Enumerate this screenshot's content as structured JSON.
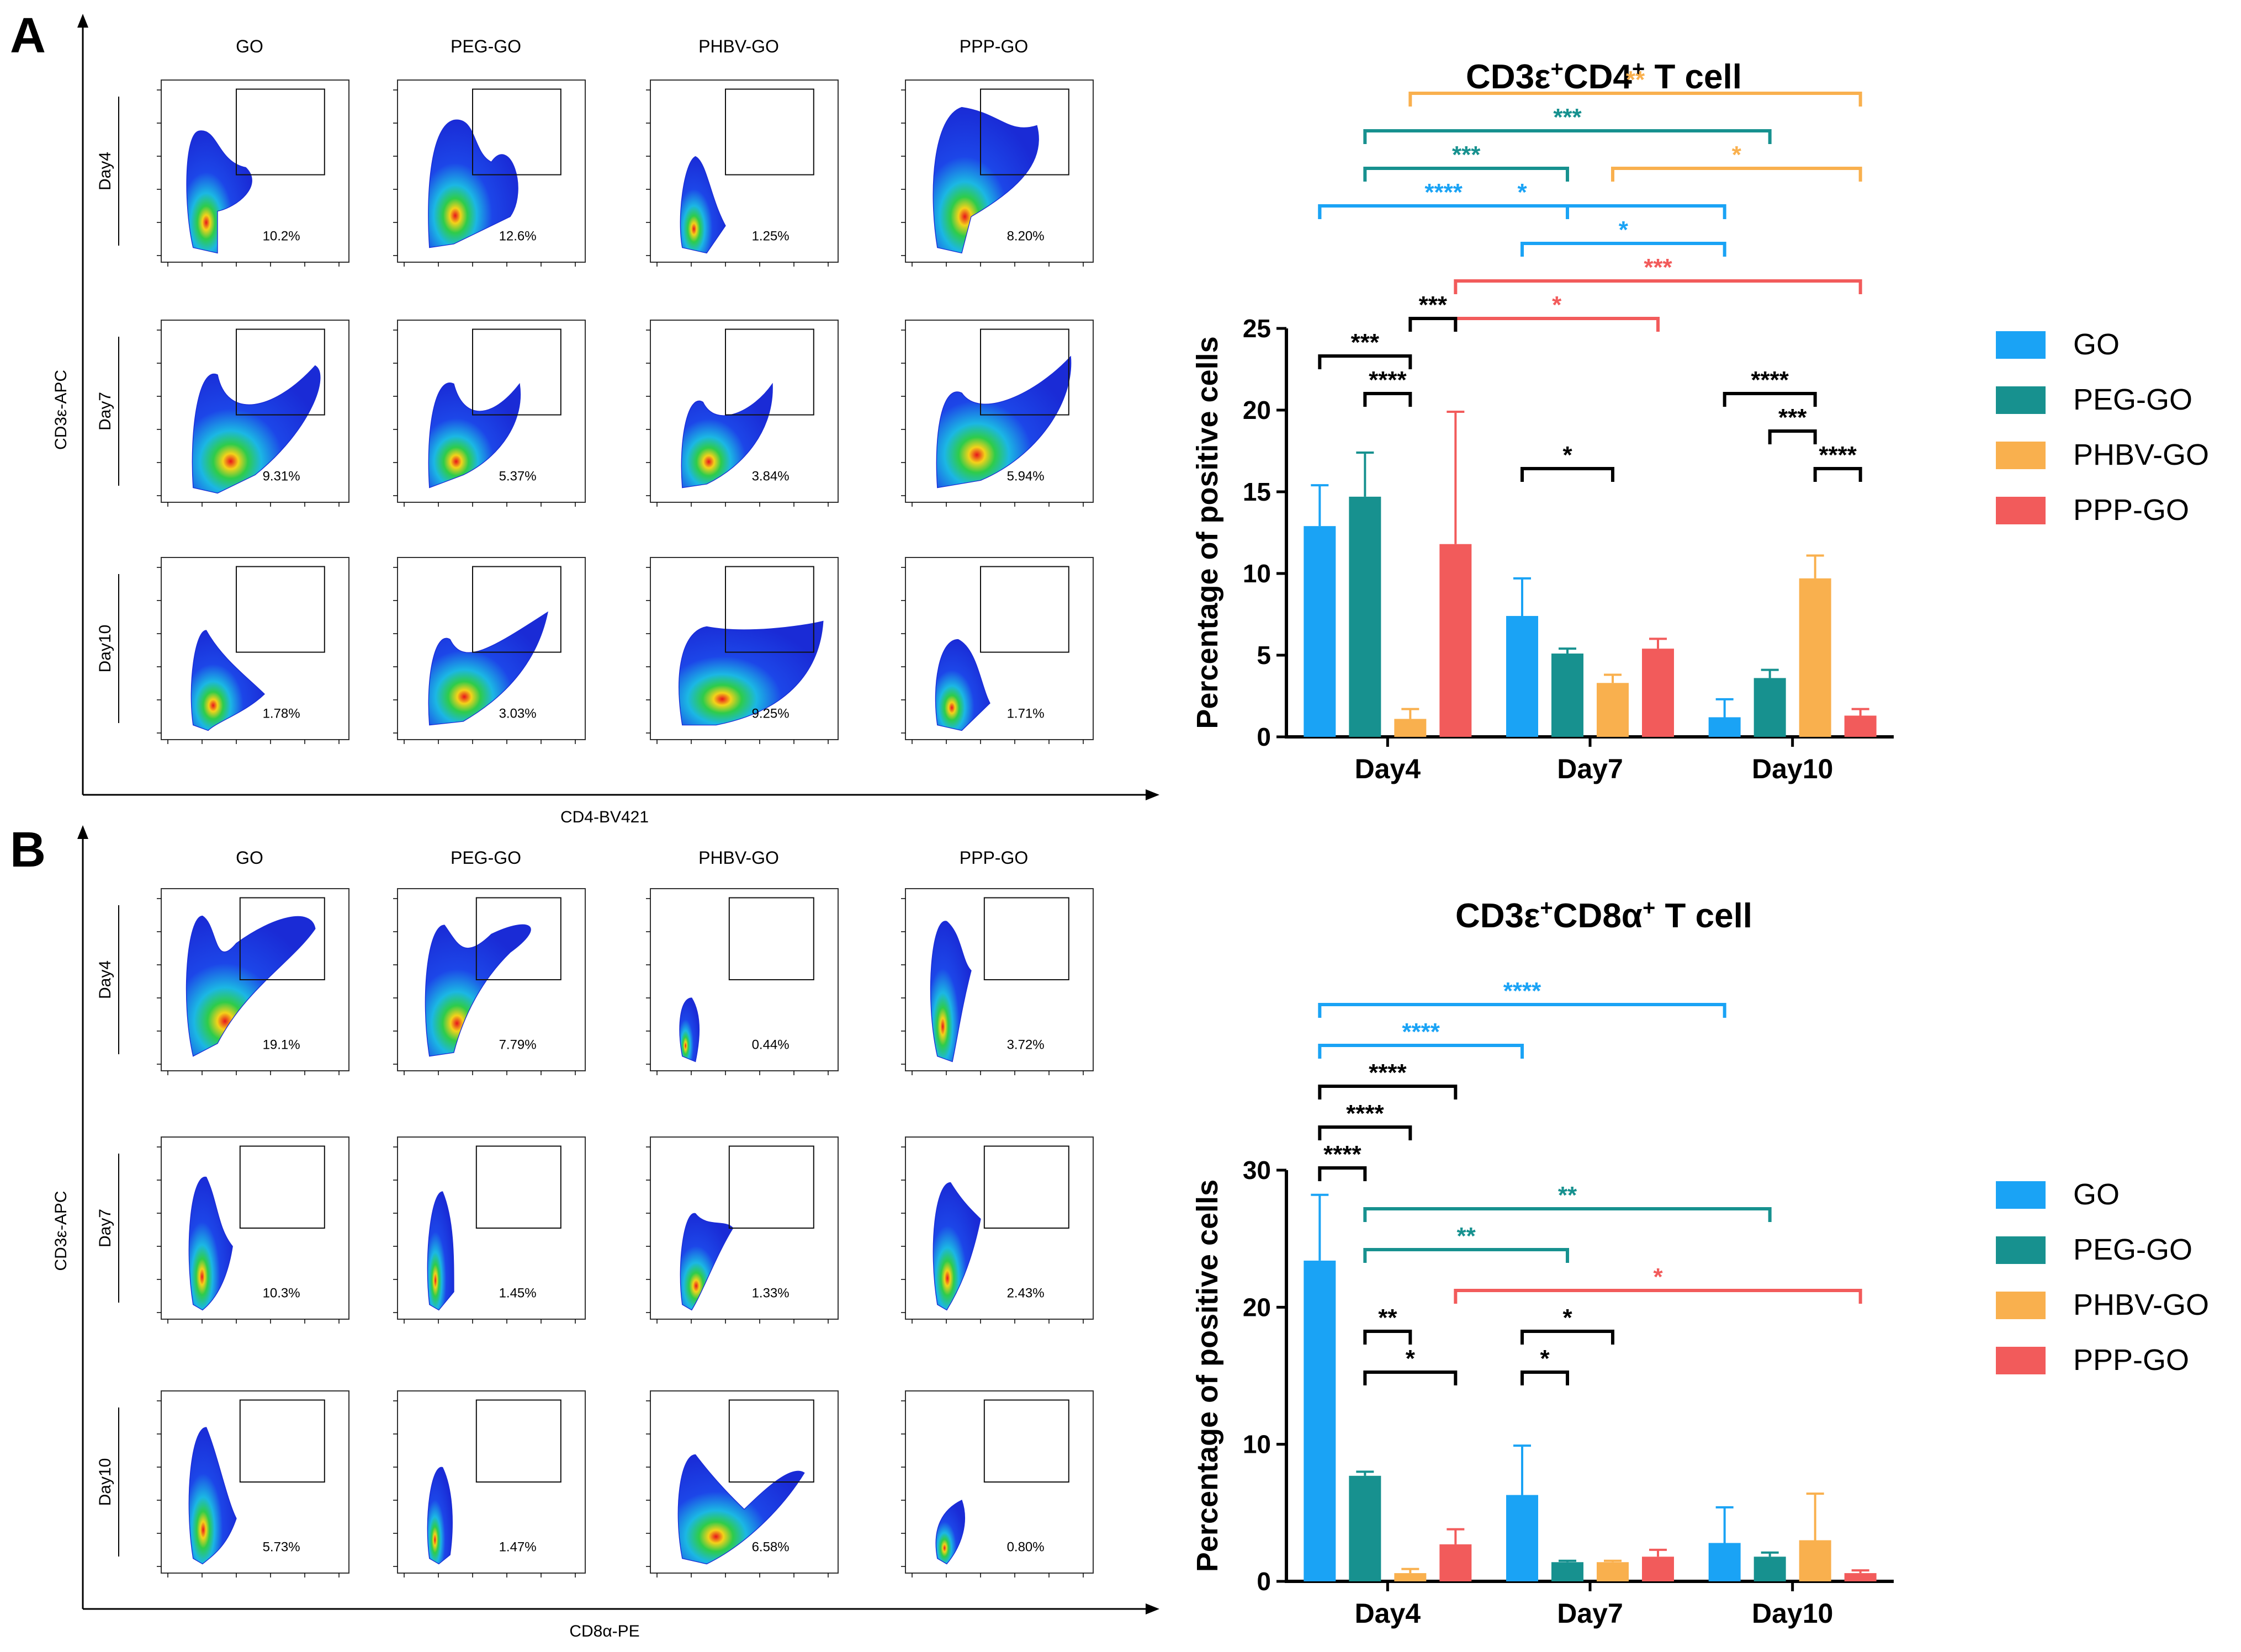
{
  "panels": [
    {
      "letter": "A",
      "columns": [
        "GO",
        "PEG-GO",
        "PHBV-GO",
        "PPP-GO"
      ],
      "rows": [
        "Day4",
        "Day7",
        "Day10"
      ],
      "y_axis": "CD3ε-APC",
      "x_axis": "CD4-BV421",
      "percentages": [
        [
          "10.2%",
          "12.6%",
          "1.25%",
          "8.20%"
        ],
        [
          "9.31%",
          "5.37%",
          "3.84%",
          "5.94%"
        ],
        [
          "1.78%",
          "3.03%",
          "9.25%",
          "1.71%"
        ]
      ]
    },
    {
      "letter": "B",
      "columns": [
        "GO",
        "PEG-GO",
        "PHBV-GO",
        "PPP-GO"
      ],
      "rows": [
        "Day4",
        "Day7",
        "Day10"
      ],
      "y_axis": "CD3ε-APC",
      "x_axis": "CD8α-PE",
      "percentages": [
        [
          "19.1%",
          "7.79%",
          "0.44%",
          "3.72%"
        ],
        [
          "10.3%",
          "1.45%",
          "1.33%",
          "2.43%"
        ],
        [
          "5.73%",
          "1.47%",
          "6.58%",
          "0.80%"
        ]
      ]
    }
  ],
  "colors": {
    "GO": "#1aa3f5",
    "PEG-GO": "#17918f",
    "PHBV-GO": "#f9b04e",
    "PPP-GO": "#f25b5b",
    "black": "#000000"
  },
  "chart_data": [
    {
      "type": "bar",
      "title_parts": [
        "CD3ε",
        "+",
        "CD4",
        "+",
        " T cell"
      ],
      "categories": [
        "Day4",
        "Day7",
        "Day10"
      ],
      "ylabel": "Percentage of positive cells",
      "ylim": [
        0,
        25
      ],
      "yticks": [
        0,
        5,
        10,
        15,
        20,
        25
      ],
      "series": [
        {
          "name": "GO",
          "values": [
            12.9,
            7.4,
            1.2
          ],
          "errors": [
            2.5,
            2.3,
            1.1
          ]
        },
        {
          "name": "PEG-GO",
          "values": [
            14.7,
            5.1,
            3.6
          ],
          "errors": [
            2.7,
            0.3,
            0.5
          ]
        },
        {
          "name": "PHBV-GO",
          "values": [
            1.1,
            3.3,
            9.7
          ],
          "errors": [
            0.6,
            0.5,
            1.4
          ]
        },
        {
          "name": "PPP-GO",
          "values": [
            11.8,
            5.4,
            1.3
          ],
          "errors": [
            8.1,
            0.6,
            0.4
          ]
        }
      ],
      "brackets": [
        {
          "label": "**",
          "from": [
            0,
            2
          ],
          "to": [
            2,
            3
          ],
          "color": "PHBV-GO",
          "level": 12
        },
        {
          "label": "***",
          "from": [
            0,
            1
          ],
          "to": [
            2,
            1
          ],
          "color": "PEG-GO",
          "level": 11
        },
        {
          "label": "***",
          "from": [
            0,
            1
          ],
          "to": [
            1,
            1
          ],
          "color": "PEG-GO",
          "level": 10
        },
        {
          "label": "*",
          "from": [
            1,
            2
          ],
          "to": [
            2,
            3
          ],
          "color": "PHBV-GO",
          "level": 10
        },
        {
          "label": "****",
          "from": [
            0,
            0
          ],
          "to": [
            1,
            1
          ],
          "color": "GO",
          "level": 9
        },
        {
          "label": "*",
          "from": [
            0,
            0
          ],
          "to": [
            2,
            0
          ],
          "color": "GO",
          "level": 9
        },
        {
          "label": "*",
          "from": [
            1,
            0
          ],
          "to": [
            2,
            0
          ],
          "color": "GO",
          "level": 8
        },
        {
          "label": "***",
          "from": [
            0,
            3
          ],
          "to": [
            2,
            3
          ],
          "color": "PPP-GO",
          "level": 7
        },
        {
          "label": "*",
          "from": [
            0,
            3
          ],
          "to": [
            1,
            3
          ],
          "color": "PPP-GO",
          "level": 6
        },
        {
          "label": "***",
          "from": [
            0,
            2
          ],
          "to": [
            0,
            3
          ],
          "color": "black",
          "level": 6
        },
        {
          "label": "***",
          "from": [
            0,
            0
          ],
          "to": [
            0,
            2
          ],
          "color": "black",
          "level": 5
        },
        {
          "label": "****",
          "from": [
            0,
            1
          ],
          "to": [
            0,
            2
          ],
          "color": "black",
          "level": 4
        },
        {
          "label": "****",
          "from": [
            2,
            0
          ],
          "to": [
            2,
            2
          ],
          "color": "black",
          "level": 4
        },
        {
          "label": "***",
          "from": [
            2,
            1
          ],
          "to": [
            2,
            2
          ],
          "color": "black",
          "level": 3
        },
        {
          "label": "****",
          "from": [
            2,
            2
          ],
          "to": [
            2,
            3
          ],
          "color": "black",
          "level": 2
        },
        {
          "label": "*",
          "from": [
            1,
            0
          ],
          "to": [
            1,
            2
          ],
          "color": "black",
          "level": 2
        }
      ]
    },
    {
      "type": "bar",
      "title_parts": [
        "CD3ε",
        "+",
        "CD8α",
        "+",
        " T cell"
      ],
      "categories": [
        "Day4",
        "Day7",
        "Day10"
      ],
      "ylabel": "Percentage of positive cells",
      "ylim": [
        0,
        30
      ],
      "yticks": [
        0,
        10,
        20,
        30
      ],
      "series": [
        {
          "name": "GO",
          "values": [
            23.4,
            6.3,
            2.8
          ],
          "errors": [
            4.8,
            3.6,
            2.6
          ]
        },
        {
          "name": "PEG-GO",
          "values": [
            7.7,
            1.4,
            1.8
          ],
          "errors": [
            0.3,
            0.1,
            0.3
          ]
        },
        {
          "name": "PHBV-GO",
          "values": [
            0.6,
            1.4,
            3.0
          ],
          "errors": [
            0.3,
            0.1,
            3.4
          ]
        },
        {
          "name": "PPP-GO",
          "values": [
            2.7,
            1.8,
            0.6
          ],
          "errors": [
            1.1,
            0.5,
            0.2
          ]
        }
      ],
      "brackets": [
        {
          "label": "****",
          "from": [
            0,
            0
          ],
          "to": [
            2,
            0
          ],
          "color": "GO",
          "level": 10
        },
        {
          "label": "****",
          "from": [
            0,
            0
          ],
          "to": [
            1,
            0
          ],
          "color": "GO",
          "level": 9
        },
        {
          "label": "****",
          "from": [
            0,
            0
          ],
          "to": [
            0,
            3
          ],
          "color": "black",
          "level": 8
        },
        {
          "label": "****",
          "from": [
            0,
            0
          ],
          "to": [
            0,
            2
          ],
          "color": "black",
          "level": 7
        },
        {
          "label": "****",
          "from": [
            0,
            0
          ],
          "to": [
            0,
            1
          ],
          "color": "black",
          "level": 6
        },
        {
          "label": "**",
          "from": [
            0,
            1
          ],
          "to": [
            2,
            1
          ],
          "color": "PEG-GO",
          "level": 5
        },
        {
          "label": "**",
          "from": [
            0,
            1
          ],
          "to": [
            1,
            1
          ],
          "color": "PEG-GO",
          "level": 4
        },
        {
          "label": "*",
          "from": [
            0,
            3
          ],
          "to": [
            2,
            3
          ],
          "color": "PPP-GO",
          "level": 3
        },
        {
          "label": "**",
          "from": [
            0,
            1
          ],
          "to": [
            0,
            2
          ],
          "color": "black",
          "level": 2
        },
        {
          "label": "*",
          "from": [
            0,
            1
          ],
          "to": [
            0,
            3
          ],
          "color": "black",
          "level": 1
        },
        {
          "label": "*",
          "from": [
            1,
            0
          ],
          "to": [
            1,
            2
          ],
          "color": "black",
          "level": 2
        },
        {
          "label": "*",
          "from": [
            1,
            0
          ],
          "to": [
            1,
            1
          ],
          "color": "black",
          "level": 1
        }
      ]
    }
  ]
}
